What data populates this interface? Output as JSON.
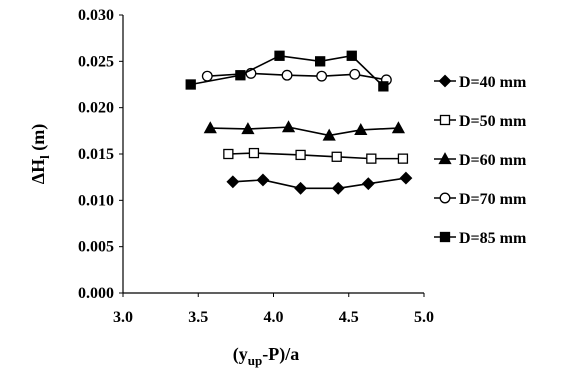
{
  "chart_data": {
    "type": "line",
    "xlabel": "(y_up-P)/a",
    "xlabel_main": "(y",
    "xlabel_sub": "up",
    "xlabel_tail": "-P)/a",
    "ylabel": "ΔH_l (m)",
    "ylabel_main": "ΔH",
    "ylabel_sub": "l",
    "ylabel_tail": " (m)",
    "xlim": [
      3.0,
      5.0
    ],
    "ylim": [
      0.0,
      0.03
    ],
    "x_ticks": [
      "3.0",
      "3.5",
      "4.0",
      "4.5",
      "5.0"
    ],
    "y_ticks": [
      "0.000",
      "0.005",
      "0.010",
      "0.015",
      "0.020",
      "0.025",
      "0.030"
    ],
    "grid": false,
    "legend_position": "right",
    "series": [
      {
        "name": "D=40 mm",
        "marker": "diamond-filled",
        "x": [
          3.73,
          3.93,
          4.18,
          4.43,
          4.63,
          4.88
        ],
        "y": [
          0.012,
          0.0122,
          0.0113,
          0.0113,
          0.0118,
          0.0124
        ]
      },
      {
        "name": "D=50 mm",
        "marker": "square-open",
        "x": [
          3.7,
          3.87,
          4.18,
          4.42,
          4.65,
          4.86
        ],
        "y": [
          0.015,
          0.0151,
          0.0149,
          0.0147,
          0.0145,
          0.0145
        ]
      },
      {
        "name": "D=60 mm",
        "marker": "triangle-filled",
        "x": [
          3.58,
          3.83,
          4.1,
          4.37,
          4.58,
          4.83
        ],
        "y": [
          0.0178,
          0.0177,
          0.0179,
          0.017,
          0.0176,
          0.0178
        ]
      },
      {
        "name": "D=70 mm",
        "marker": "circle-open",
        "x": [
          3.56,
          3.85,
          4.09,
          4.32,
          4.54,
          4.75
        ],
        "y": [
          0.0234,
          0.0237,
          0.0235,
          0.0234,
          0.0236,
          0.023
        ]
      },
      {
        "name": "D=85 mm",
        "marker": "square-filled",
        "x": [
          3.45,
          3.78,
          4.04,
          4.31,
          4.52,
          4.73
        ],
        "y": [
          0.0225,
          0.0235,
          0.0256,
          0.025,
          0.0256,
          0.0223
        ]
      }
    ]
  }
}
